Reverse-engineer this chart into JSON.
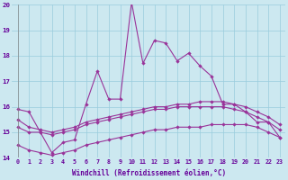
{
  "x": [
    0,
    1,
    2,
    3,
    4,
    5,
    6,
    7,
    8,
    9,
    10,
    11,
    12,
    13,
    14,
    15,
    16,
    17,
    18,
    19,
    20,
    21,
    22,
    23
  ],
  "line1": [
    15.9,
    15.8,
    15.0,
    14.2,
    14.6,
    14.7,
    16.1,
    17.4,
    16.3,
    16.3,
    20.1,
    17.7,
    18.6,
    18.5,
    17.8,
    18.1,
    17.6,
    17.2,
    16.1,
    16.1,
    15.8,
    15.4,
    15.4,
    14.8
  ],
  "line2": [
    15.5,
    15.2,
    15.1,
    15.0,
    15.1,
    15.2,
    15.4,
    15.5,
    15.6,
    15.7,
    15.8,
    15.9,
    16.0,
    16.0,
    16.1,
    16.1,
    16.2,
    16.2,
    16.2,
    16.1,
    16.0,
    15.8,
    15.6,
    15.3
  ],
  "line3": [
    15.2,
    15.0,
    15.0,
    14.9,
    15.0,
    15.1,
    15.3,
    15.4,
    15.5,
    15.6,
    15.7,
    15.8,
    15.9,
    15.9,
    16.0,
    16.0,
    16.0,
    16.0,
    16.0,
    15.9,
    15.8,
    15.6,
    15.4,
    15.1
  ],
  "line4": [
    14.5,
    14.3,
    14.2,
    14.1,
    14.2,
    14.3,
    14.5,
    14.6,
    14.7,
    14.8,
    14.9,
    15.0,
    15.1,
    15.1,
    15.2,
    15.2,
    15.2,
    15.3,
    15.3,
    15.3,
    15.3,
    15.2,
    15.0,
    14.8
  ],
  "line_color": "#993399",
  "xlabel": "Windchill (Refroidissement éolien,°C)",
  "ylim": [
    14,
    20
  ],
  "xlim": [
    -0.5,
    23.5
  ],
  "yticks": [
    14,
    15,
    16,
    17,
    18,
    19,
    20
  ],
  "xticks": [
    0,
    1,
    2,
    3,
    4,
    5,
    6,
    7,
    8,
    9,
    10,
    11,
    12,
    13,
    14,
    15,
    16,
    17,
    18,
    19,
    20,
    21,
    22,
    23
  ],
  "bg_color": "#cce8f0",
  "grid_color": "#99ccdd",
  "text_color": "#660099",
  "marker": "D",
  "marker_size": 2.2,
  "linewidth": 0.8,
  "xlabel_fontsize": 5.5,
  "tick_fontsize": 4.8
}
